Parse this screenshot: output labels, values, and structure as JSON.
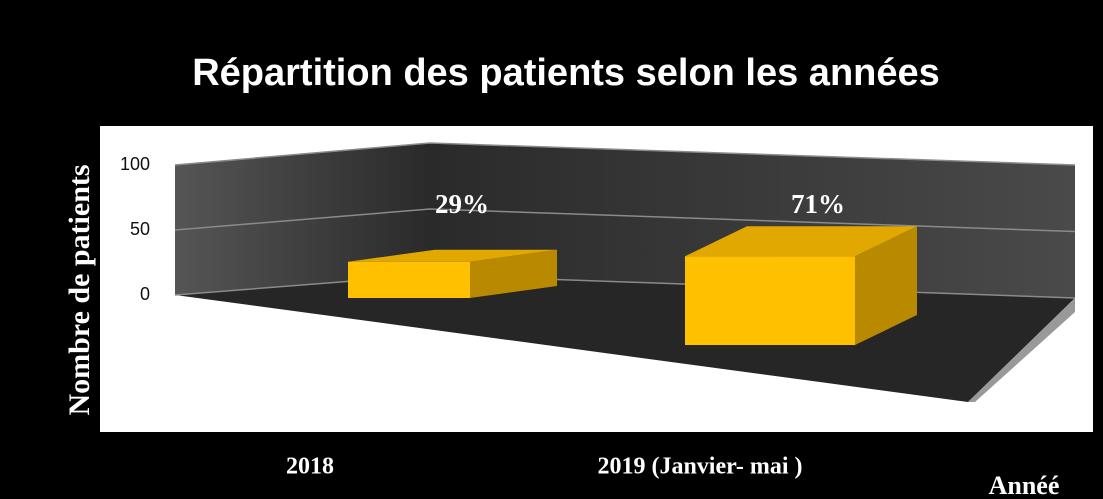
{
  "chart_data": {
    "type": "bar3d",
    "title": "Répartition des patients selon les années",
    "y_label": "Nombre de patients",
    "x_label": "Annéé",
    "categories": [
      "2018",
      "2019 (Janvier- mai )"
    ],
    "values": [
      29,
      71
    ],
    "value_labels": [
      "29%",
      "71%"
    ],
    "color": "#ffc000",
    "ylim": [
      0,
      100
    ],
    "yticks": [
      0,
      50,
      100
    ],
    "grid": true
  }
}
